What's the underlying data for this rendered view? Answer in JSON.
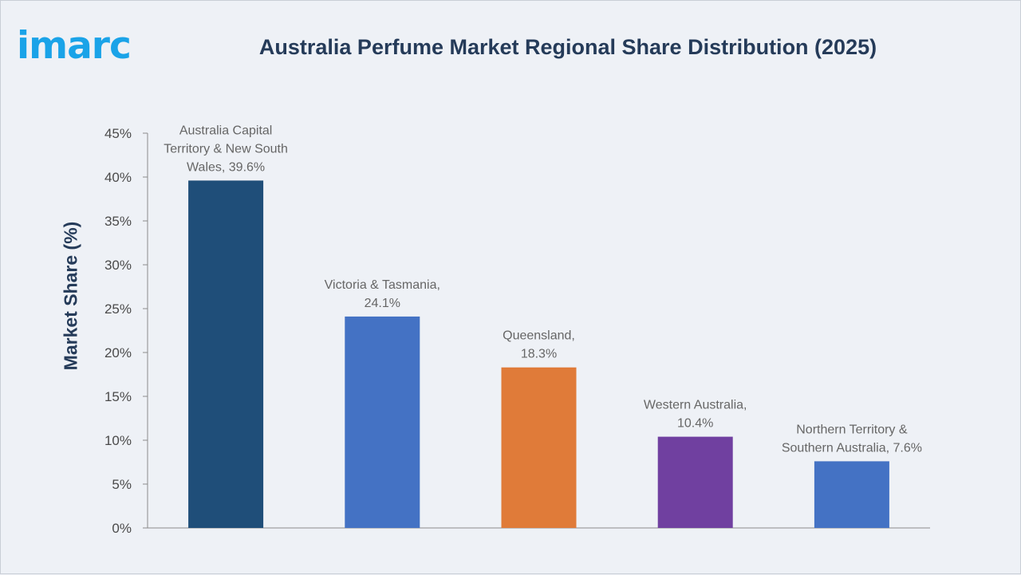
{
  "header": {
    "logo_text": "imarc",
    "title": "Australia Perfume Market Regional Share Distribution (2025)"
  },
  "chart_data": {
    "type": "bar",
    "title": "Australia Perfume Market Regional Share Distribution (2025)",
    "xlabel": "",
    "ylabel": "Market Share (%)",
    "ylim": [
      0,
      45
    ],
    "yticks": [
      "0%",
      "5%",
      "10%",
      "15%",
      "20%",
      "25%",
      "30%",
      "35%",
      "40%",
      "45%"
    ],
    "grid": false,
    "legend": "none",
    "categories": [
      "Australia Capital Territory & New South Wales",
      "Victoria & Tasmania",
      "Queensland",
      "Western Australia",
      "Northern Territory & Southern Australia"
    ],
    "values": [
      39.6,
      24.1,
      18.3,
      10.4,
      7.6
    ],
    "colors": [
      "#1f4e79",
      "#4472c4",
      "#e07b39",
      "#7040a0",
      "#4472c4"
    ],
    "data_labels": [
      [
        "Australia Capital",
        "Territory & New South",
        "Wales, 39.6%"
      ],
      [
        "Victoria & Tasmania,",
        "24.1%"
      ],
      [
        "Queensland,",
        "18.3%"
      ],
      [
        "Western Australia,",
        "10.4%"
      ],
      [
        "Northern Territory &",
        "Southern Australia, 7.6%"
      ]
    ]
  }
}
